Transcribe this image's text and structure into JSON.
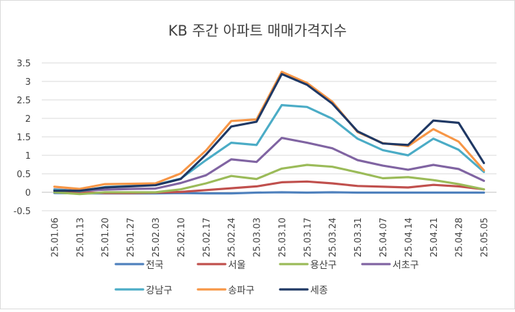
{
  "chart_data": {
    "type": "line",
    "title": "KB 주간 아파트 매매가격지수",
    "xlabel": "",
    "ylabel": "",
    "ylim": [
      -0.5,
      3.5
    ],
    "yticks": [
      -0.5,
      0,
      0.5,
      1,
      1.5,
      2,
      2.5,
      3,
      3.5
    ],
    "ytick_labels": [
      "-0.5",
      "0",
      "0.5",
      "1",
      "1.5",
      "2",
      "2.5",
      "3",
      "3.5"
    ],
    "grid": true,
    "legend_position": "bottom",
    "categories": [
      "25.01.06",
      "25.01.13",
      "25.01.20",
      "25.01.27",
      "25.02.03",
      "25.02.10",
      "25.02.17",
      "25.02.24",
      "25.03.03",
      "25.03.10",
      "25.03.17",
      "25.03.24",
      "25.03.31",
      "25.04.07",
      "25.04.14",
      "25.04.21",
      "25.04.28",
      "25.05.05"
    ],
    "series": [
      {
        "name": "전국",
        "color": "#4F81BD",
        "values": [
          -0.02,
          -0.03,
          -0.03,
          -0.03,
          -0.03,
          -0.02,
          -0.03,
          -0.03,
          -0.01,
          0.0,
          -0.01,
          0.0,
          -0.01,
          -0.01,
          -0.01,
          -0.01,
          -0.01,
          -0.01
        ]
      },
      {
        "name": "서울",
        "color": "#C0504D",
        "values": [
          0.04,
          0.0,
          -0.02,
          -0.02,
          -0.01,
          0.01,
          0.06,
          0.11,
          0.16,
          0.27,
          0.29,
          0.24,
          0.17,
          0.15,
          0.13,
          0.2,
          0.16,
          0.08
        ]
      },
      {
        "name": "용산구",
        "color": "#9BBB59",
        "values": [
          0.0,
          -0.05,
          0.0,
          0.0,
          0.0,
          0.08,
          0.24,
          0.44,
          0.36,
          0.64,
          0.74,
          0.69,
          0.54,
          0.38,
          0.41,
          0.33,
          0.22,
          0.08
        ]
      },
      {
        "name": "서초구",
        "color": "#8064A2",
        "values": [
          0.08,
          0.04,
          0.07,
          0.09,
          0.1,
          0.25,
          0.46,
          0.89,
          0.82,
          1.47,
          1.34,
          1.19,
          0.87,
          0.72,
          0.61,
          0.74,
          0.63,
          0.31
        ]
      },
      {
        "name": "강남구",
        "color": "#4BACC6",
        "values": [
          0.07,
          0.03,
          0.14,
          0.17,
          0.2,
          0.37,
          0.87,
          1.34,
          1.28,
          2.36,
          2.31,
          1.99,
          1.45,
          1.14,
          1.0,
          1.45,
          1.15,
          0.55
        ]
      },
      {
        "name": "송파구",
        "color": "#F79646",
        "values": [
          0.15,
          0.09,
          0.22,
          0.23,
          0.24,
          0.51,
          1.13,
          1.93,
          1.97,
          3.26,
          2.96,
          2.45,
          1.63,
          1.33,
          1.25,
          1.71,
          1.37,
          0.59
        ]
      },
      {
        "name": "세종",
        "color": "#1F3864",
        "values": [
          0.04,
          0.04,
          0.13,
          0.16,
          0.19,
          0.36,
          1.02,
          1.78,
          1.91,
          3.2,
          2.91,
          2.4,
          1.65,
          1.32,
          1.28,
          1.94,
          1.88,
          0.79
        ]
      }
    ]
  }
}
